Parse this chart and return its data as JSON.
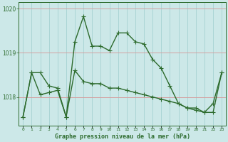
{
  "title": "Graphe pression niveau de la mer (hPa)",
  "background_color": "#cce8e8",
  "grid_color_vertical": "#9ecece",
  "grid_color_horizontal": "#d4a0a0",
  "line_color": "#2d6b2d",
  "x_labels": [
    "0",
    "1",
    "2",
    "3",
    "4",
    "5",
    "6",
    "7",
    "8",
    "9",
    "10",
    "11",
    "12",
    "13",
    "14",
    "15",
    "16",
    "17",
    "18",
    "19",
    "20",
    "21",
    "22",
    "23"
  ],
  "series1_y": [
    1017.55,
    1018.55,
    1018.55,
    1018.25,
    1018.2,
    1017.55,
    1019.25,
    1019.82,
    1019.15,
    1019.15,
    1019.05,
    1019.45,
    1019.45,
    1019.25,
    1019.2,
    1018.85,
    1018.65,
    1018.25,
    1017.85,
    1017.75,
    1017.75,
    1017.65,
    1017.85,
    1018.55
  ],
  "series2_y": [
    1017.55,
    1018.55,
    1018.05,
    1018.1,
    1018.15,
    1017.55,
    1018.6,
    1018.35,
    1018.3,
    1018.3,
    1018.2,
    1018.2,
    1018.15,
    1018.1,
    1018.05,
    1018.0,
    1017.95,
    1017.9,
    1017.85,
    1017.75,
    1017.7,
    1017.65,
    1017.65,
    1018.55
  ],
  "ylim_min": 1017.35,
  "ylim_max": 1020.15,
  "yticks": [
    1018,
    1019,
    1020
  ],
  "marker": "+",
  "markersize": 4,
  "linewidth": 1.0
}
